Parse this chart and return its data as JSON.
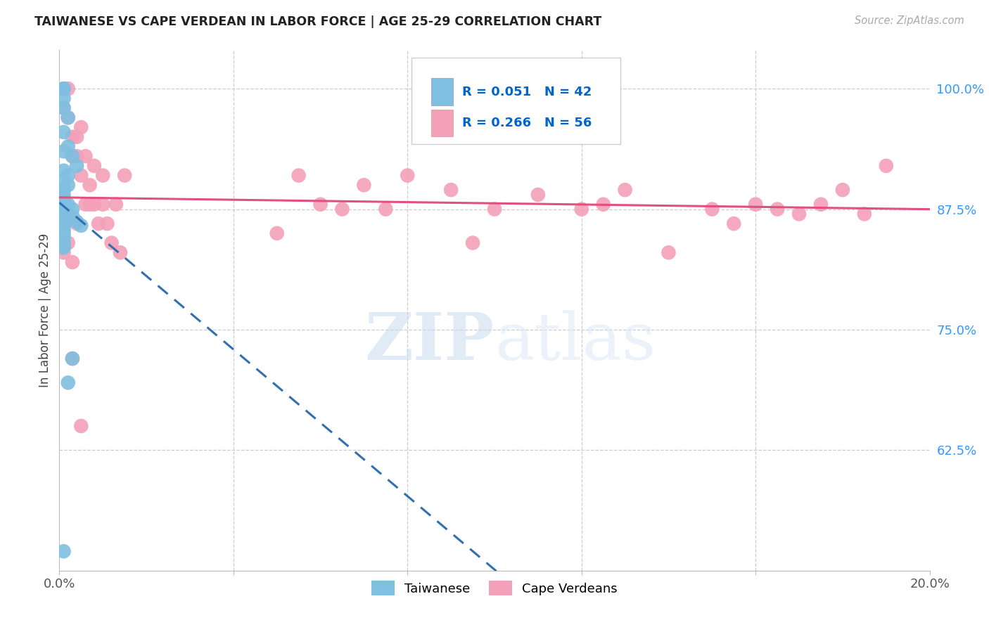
{
  "title": "TAIWANESE VS CAPE VERDEAN IN LABOR FORCE | AGE 25-29 CORRELATION CHART",
  "source_text": "Source: ZipAtlas.com",
  "ylabel": "In Labor Force | Age 25-29",
  "xlim": [
    0.0,
    0.2
  ],
  "ylim": [
    0.5,
    1.04
  ],
  "xticks": [
    0.0,
    0.04,
    0.08,
    0.12,
    0.16,
    0.2
  ],
  "xticklabels": [
    "0.0%",
    "",
    "",
    "",
    "",
    "20.0%"
  ],
  "yticks": [
    0.625,
    0.75,
    0.875,
    1.0
  ],
  "yticklabels": [
    "62.5%",
    "75.0%",
    "87.5%",
    "100.0%"
  ],
  "taiwanese_R": 0.051,
  "taiwanese_N": 42,
  "capeverdean_R": 0.266,
  "capeverdean_N": 56,
  "taiwanese_color": "#7fbfdf",
  "capeverdean_color": "#f4a0b8",
  "taiwanese_line_color": "#3070b0",
  "capeverdean_line_color": "#e05080",
  "ytick_color": "#3399ff",
  "xtick_color": "#555555",
  "watermark_zip": "ZIP",
  "watermark_atlas": "atlas",
  "background_color": "#ffffff",
  "grid_color": "#cccccc",
  "tw_x": [
    0.001,
    0.002,
    0.002,
    0.003,
    0.004,
    0.001,
    0.001,
    0.001,
    0.001,
    0.001,
    0.001,
    0.001,
    0.001,
    0.001,
    0.001,
    0.001,
    0.001,
    0.001,
    0.002,
    0.002,
    0.001,
    0.001,
    0.001,
    0.001,
    0.001,
    0.001,
    0.001,
    0.001,
    0.001,
    0.001,
    0.001,
    0.001,
    0.001,
    0.001,
    0.002,
    0.003,
    0.003,
    0.004,
    0.005,
    0.003,
    0.002,
    0.001
  ],
  "tw_y": [
    1.0,
    0.97,
    0.94,
    0.93,
    0.92,
    1.0,
    0.99,
    0.98,
    0.955,
    0.935,
    0.915,
    0.905,
    0.895,
    0.885,
    0.875,
    0.87,
    0.862,
    0.858,
    0.91,
    0.9,
    0.89,
    0.883,
    0.875,
    0.868,
    0.86,
    0.855,
    0.848,
    0.84,
    0.835,
    0.865,
    0.858,
    0.852,
    0.845,
    0.838,
    0.88,
    0.875,
    0.868,
    0.862,
    0.858,
    0.72,
    0.695,
    0.52
  ],
  "cv_x": [
    0.001,
    0.001,
    0.002,
    0.002,
    0.003,
    0.003,
    0.004,
    0.004,
    0.005,
    0.005,
    0.006,
    0.006,
    0.007,
    0.007,
    0.008,
    0.008,
    0.009,
    0.01,
    0.01,
    0.011,
    0.012,
    0.013,
    0.014,
    0.015,
    0.001,
    0.002,
    0.003,
    0.004,
    0.001,
    0.002,
    0.05,
    0.055,
    0.06,
    0.065,
    0.07,
    0.075,
    0.08,
    0.09,
    0.095,
    0.1,
    0.11,
    0.12,
    0.125,
    0.13,
    0.14,
    0.15,
    0.155,
    0.16,
    0.165,
    0.17,
    0.175,
    0.18,
    0.185,
    0.19,
    0.003,
    0.005
  ],
  "cv_y": [
    1.0,
    0.98,
    1.0,
    0.97,
    0.95,
    0.93,
    0.95,
    0.93,
    0.91,
    0.96,
    0.88,
    0.93,
    0.9,
    0.88,
    0.92,
    0.88,
    0.86,
    0.91,
    0.88,
    0.86,
    0.84,
    0.88,
    0.83,
    0.91,
    0.86,
    0.84,
    0.82,
    0.86,
    0.83,
    0.87,
    0.85,
    0.91,
    0.88,
    0.875,
    0.9,
    0.875,
    0.91,
    0.895,
    0.84,
    0.875,
    0.89,
    0.875,
    0.88,
    0.895,
    0.83,
    0.875,
    0.86,
    0.88,
    0.875,
    0.87,
    0.88,
    0.895,
    0.87,
    0.92,
    0.72,
    0.65
  ]
}
